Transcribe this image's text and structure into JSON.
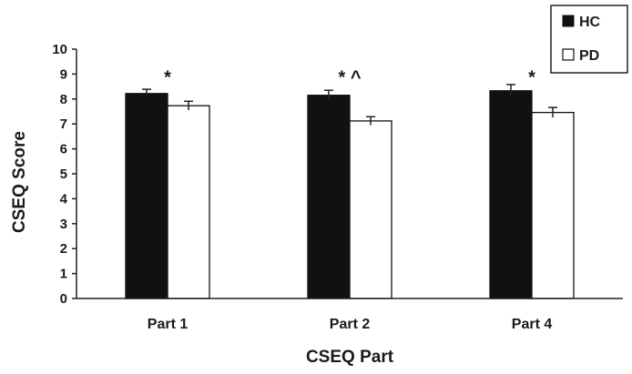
{
  "chart_data": {
    "type": "bar",
    "title": "",
    "xlabel": "CSEQ Part",
    "ylabel": "CSEQ Score",
    "ylim": [
      0,
      10
    ],
    "yticks": [
      "0",
      "1",
      "2",
      "3",
      "4",
      "5",
      "6",
      "7",
      "8",
      "9",
      "10"
    ],
    "categories": [
      "Part 1",
      "Part 2",
      "Part 4"
    ],
    "series": [
      {
        "name": "HC",
        "values": [
          8.22,
          8.15,
          8.33
        ],
        "errors": [
          0.17,
          0.2,
          0.25
        ],
        "color": "#111111"
      },
      {
        "name": "PD",
        "values": [
          7.73,
          7.12,
          7.46
        ],
        "errors": [
          0.18,
          0.17,
          0.2
        ],
        "color": "#ffffff"
      }
    ],
    "annotations": [
      {
        "category": "Part 1",
        "text": "*"
      },
      {
        "category": "Part 2",
        "text": "* ^"
      },
      {
        "category": "Part 4",
        "text": "*"
      }
    ],
    "legend_position": "top-right"
  }
}
